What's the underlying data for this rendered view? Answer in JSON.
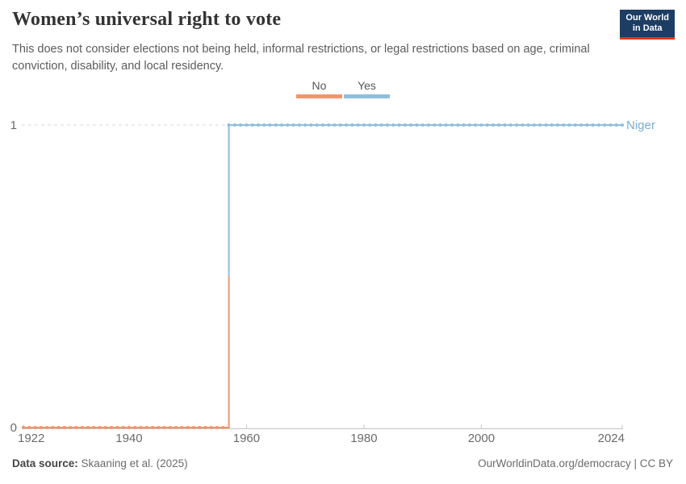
{
  "header": {
    "title": "Women’s universal right to vote",
    "subtitle": "This does not consider elections not being held, informal restrictions, or legal restrictions based on age, criminal conviction, disability, and local residency.",
    "logo": {
      "line1": "Our World",
      "line2": "in Data",
      "bg_color": "#1d3d63",
      "accent_color": "#e0351b"
    }
  },
  "legend": {
    "items": [
      {
        "label": "No",
        "color": "#f2946c"
      },
      {
        "label": "Yes",
        "color": "#8fbedb"
      }
    ]
  },
  "chart_data": {
    "type": "line",
    "subtype": "step-categorical-timeline",
    "title": "Women’s universal right to vote",
    "entity_label": "Niger",
    "entity_label_color": "#77add2",
    "x_range": [
      1922,
      2024
    ],
    "x_ticks": [
      1922,
      1940,
      1960,
      1980,
      2000,
      2024
    ],
    "y_ticks": [
      0,
      1
    ],
    "ylim": [
      0,
      1
    ],
    "grid": "dashed horizontal gridline at y=1",
    "legend_position": "top-center",
    "marker_interval_years": 1,
    "step_series": {
      "name": "Niger",
      "transition_year": 1957,
      "segments": [
        {
          "label": "No",
          "value": 0,
          "start_year": 1922,
          "end_year": 1956,
          "color": "#f2946c"
        },
        {
          "label": "Yes",
          "value": 1,
          "start_year": 1957,
          "end_year": 2024,
          "color": "#8fbedb"
        }
      ]
    }
  },
  "footer": {
    "source_label": "Data source:",
    "source_value": "Skaaning et al. (2025)",
    "attribution": "OurWorldinData.org/democracy | CC BY"
  }
}
